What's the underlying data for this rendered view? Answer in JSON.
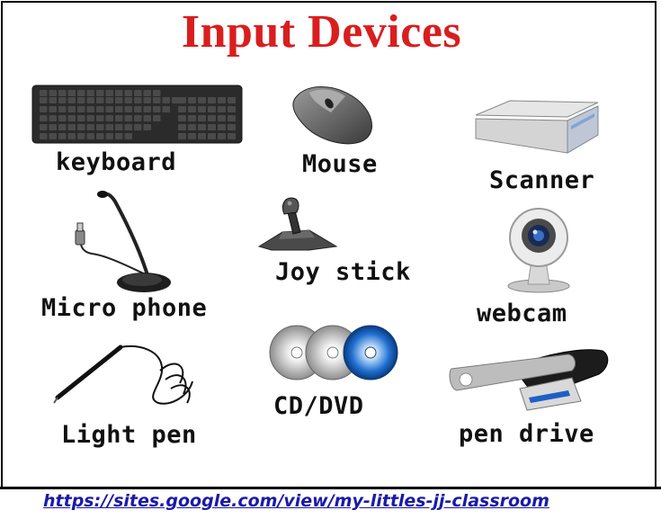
{
  "title": "Input Devices",
  "devices": [
    {
      "label": "keyboard",
      "icon": "keyboard-icon"
    },
    {
      "label": "Mouse",
      "icon": "mouse-icon"
    },
    {
      "label": "Scanner",
      "icon": "scanner-icon"
    },
    {
      "label": "Micro phone",
      "icon": "microphone-icon"
    },
    {
      "label": "Joy stick",
      "icon": "joystick-icon"
    },
    {
      "label": "webcam",
      "icon": "webcam-icon"
    },
    {
      "label": "Light pen",
      "icon": "light-pen-icon"
    },
    {
      "label": "CD/DVD",
      "icon": "cd-dvd-icon"
    },
    {
      "label": "pen drive",
      "icon": "pen-drive-icon"
    }
  ],
  "footer": {
    "link": "https://sites.google.com/view/my-littles-jj-classroom"
  },
  "colors": {
    "title": "#d91e1e",
    "link": "#1a1aa8",
    "border": "#000000",
    "background": "#ffffff"
  }
}
